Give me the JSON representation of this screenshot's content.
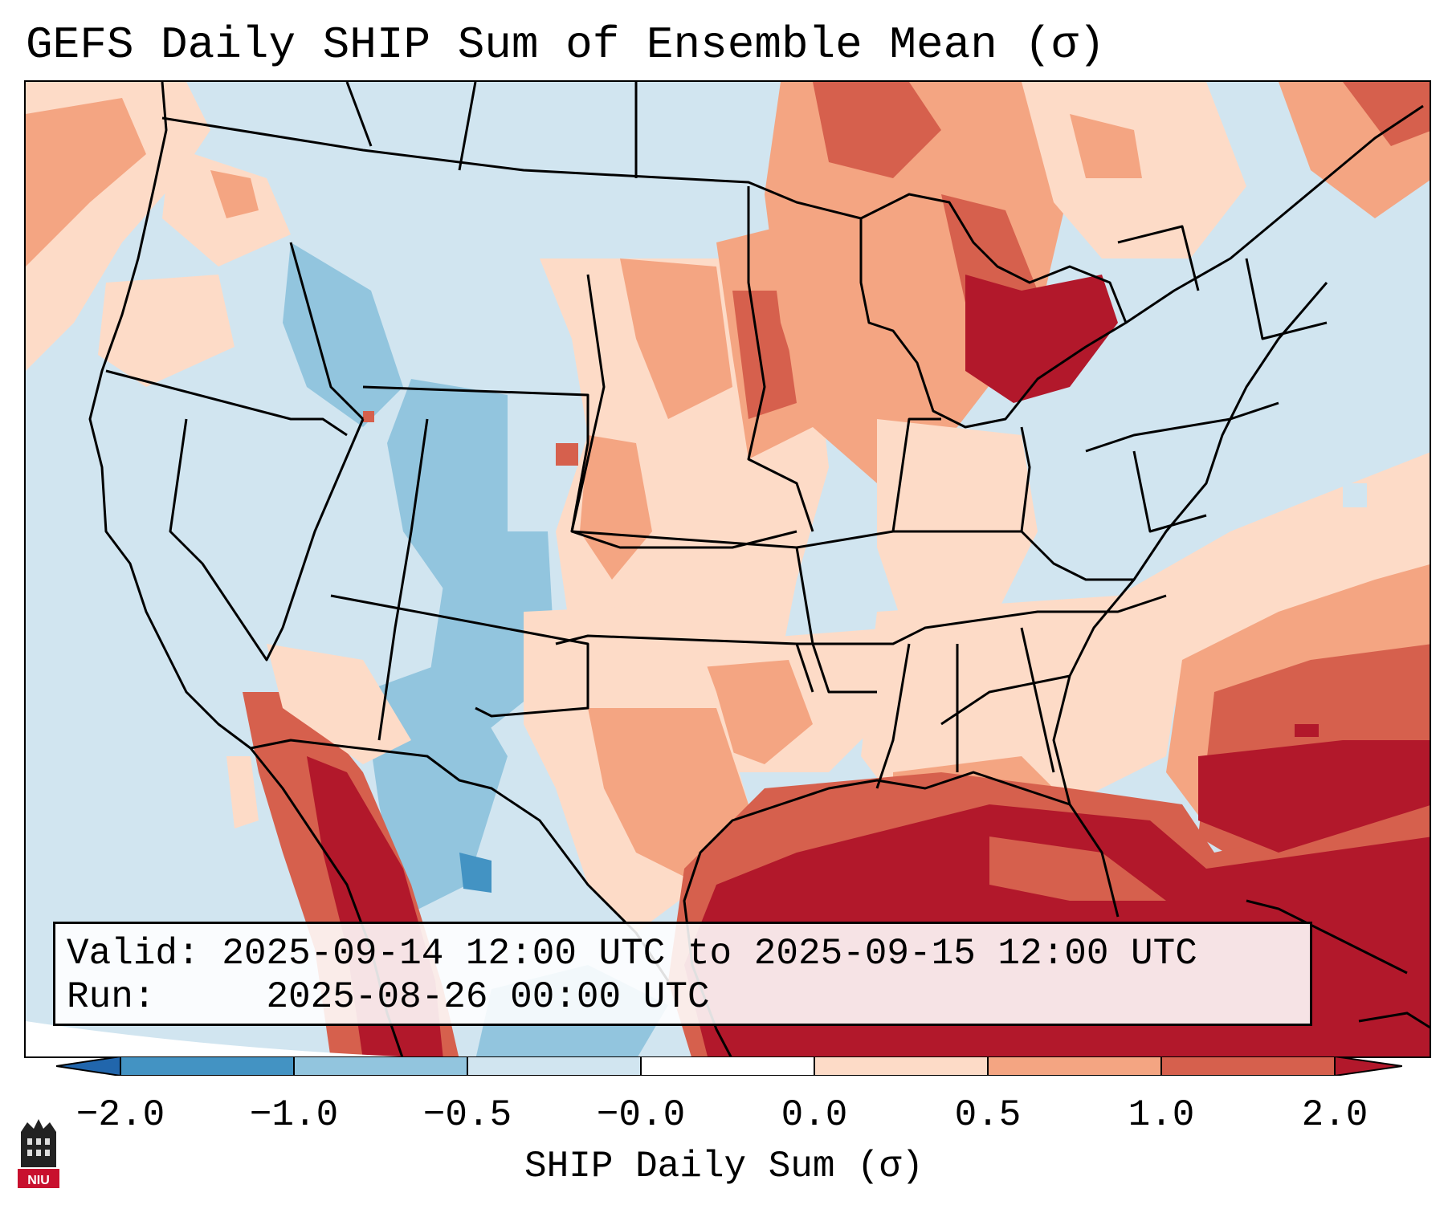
{
  "title": "GEFS Daily SHIP Sum of Ensemble Mean (σ)",
  "map": {
    "description_label": "Contiguous United States SHIP anomaly map",
    "category_colors": {
      "below_-1.0": "#4393c3",
      "-1.0_to_-0.5": "#92c5de",
      "-0.5_to_0.0": "#d1e5f0",
      "0.0_to_0.5": "#fddbc7",
      "0.5_to_1.0": "#f4a582",
      "1.0_to_2.0": "#d6604d",
      "above_2.0": "#b2182b"
    }
  },
  "info": {
    "valid_label": "Valid:",
    "valid_value": "2025-09-14 12:00 UTC to 2025-09-15 12:00 UTC",
    "run_label": "Run:",
    "run_value": "2025-08-26 00:00 UTC"
  },
  "colorbar": {
    "ticks": [
      "−2.0",
      "−1.0",
      "−0.5",
      "−0.0",
      "0.0",
      "0.5",
      "1.0",
      "2.0"
    ],
    "segment_colors": [
      "#4393c3",
      "#92c5de",
      "#d1e5f0",
      "#ffffff",
      "#fddbc7",
      "#f4a582",
      "#d6604d"
    ],
    "under_color": "#2166ac",
    "over_color": "#b2182b",
    "label": "SHIP Daily Sum (σ)"
  },
  "logo": {
    "text": "NIU",
    "color": "#c8102e"
  }
}
